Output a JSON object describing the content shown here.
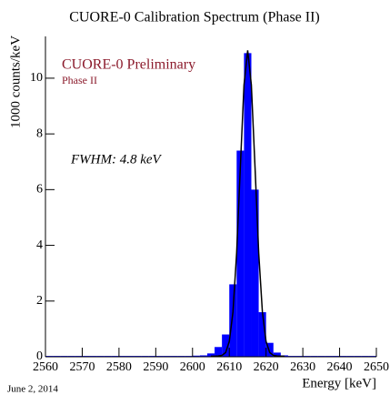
{
  "chart_data": {
    "type": "histogram",
    "title": "CUORE-0 Calibration Spectrum (Phase II)",
    "xlabel": "Energy [keV]",
    "ylabel": "1000 counts/keV",
    "annotations": [
      "CUORE-0 Preliminary",
      "Phase II",
      "FWHM: 4.8 keV",
      "June 2, 2014"
    ],
    "bins": [
      2560,
      2562,
      2564,
      2566,
      2568,
      2570,
      2572,
      2574,
      2576,
      2578,
      2580,
      2582,
      2584,
      2586,
      2588,
      2590,
      2592,
      2594,
      2596,
      2598,
      2600,
      2602,
      2604,
      2606,
      2608,
      2610,
      2612,
      2614,
      2616,
      2618,
      2620,
      2622,
      2624,
      2626,
      2628,
      2630,
      2632,
      2634,
      2636,
      2638,
      2640,
      2642,
      2644,
      2646,
      2648,
      2650
    ],
    "counts": [
      0.03,
      0.03,
      0.03,
      0.03,
      0.03,
      0.03,
      0.03,
      0.03,
      0.03,
      0.03,
      0.03,
      0.03,
      0.03,
      0.03,
      0.03,
      0.03,
      0.03,
      0.03,
      0.03,
      0.03,
      0.04,
      0.05,
      0.12,
      0.35,
      0.8,
      2.6,
      7.4,
      10.9,
      6.0,
      1.6,
      0.5,
      0.15,
      0.05,
      0.03,
      0.03,
      0.03,
      0.03,
      0.03,
      0.03,
      0.03,
      0.03,
      0.03,
      0.03,
      0.03,
      0.03
    ],
    "color": "#0000ff",
    "fit": {
      "color": "#000000",
      "x": [
        2605,
        2606,
        2607,
        2608,
        2609,
        2610,
        2611,
        2612,
        2613,
        2614,
        2615,
        2616,
        2617,
        2618,
        2619,
        2620,
        2621,
        2622,
        2623,
        2624,
        2625
      ],
      "values": [
        0.02,
        0.02,
        0.03,
        0.05,
        0.15,
        0.55,
        1.61,
        3.73,
        6.8,
        9.76,
        11,
        9.76,
        6.8,
        3.73,
        1.61,
        0.55,
        0.15,
        0.05,
        0.03,
        0.02,
        0.02
      ]
    },
    "xlim": [
      2560,
      2650
    ],
    "ylim": [
      0,
      11.5
    ],
    "xticks": [
      2560,
      2570,
      2580,
      2590,
      2600,
      2610,
      2620,
      2630,
      2640,
      2650
    ],
    "yticks": [
      0,
      2,
      4,
      6,
      8,
      10
    ]
  }
}
